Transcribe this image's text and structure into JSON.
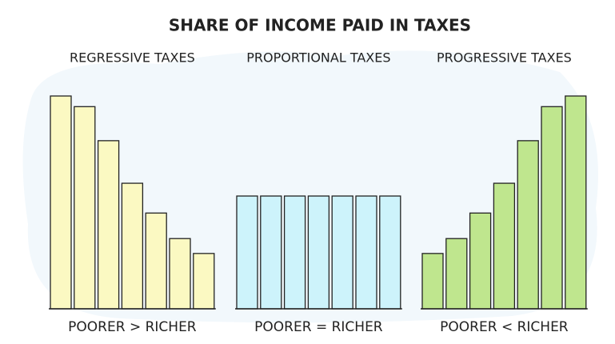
{
  "title": "SHARE OF INCOME PAID IN TAXES",
  "chart_data": [
    {
      "type": "bar",
      "title": "REGRESSIVE TAXES",
      "xlabel": "POORER > RICHER",
      "color": "#fbf9c2",
      "values": [
        100,
        95,
        79,
        59,
        45,
        33,
        26
      ]
    },
    {
      "type": "bar",
      "title": "PROPORTIONAL TAXES",
      "xlabel": "POORER = RICHER",
      "color": "#cdf3fb",
      "values": [
        53,
        53,
        53,
        53,
        53,
        53,
        53
      ]
    },
    {
      "type": "bar",
      "title": "PROGRESSIVE TAXES",
      "xlabel": "POORER < RICHER",
      "color": "#bfe68e",
      "values": [
        26,
        33,
        45,
        59,
        79,
        95,
        100
      ]
    }
  ]
}
